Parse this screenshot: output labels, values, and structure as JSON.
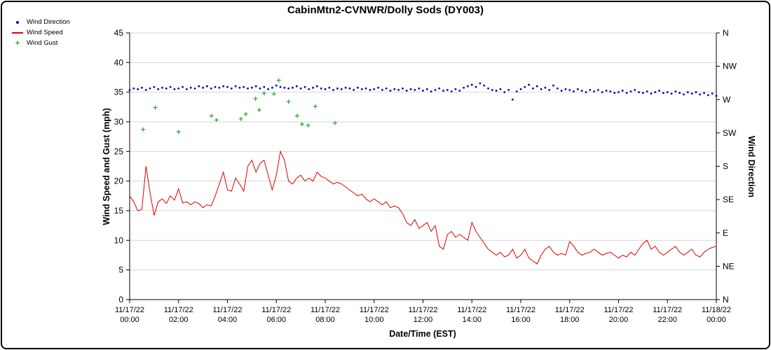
{
  "title": "CabinMtn2-CVNWR/Dolly Sods (DY003)",
  "chart_data": {
    "type": "line",
    "title": "CabinMtn2-CVNWR/Dolly Sods (DY003)",
    "xlabel": "Date/Time (EST)",
    "ylabel_left": "Wind Speed and Gust (mph)",
    "ylabel_right": "Wind Direction",
    "xlim_hours": [
      0,
      24
    ],
    "ylim_left": [
      0,
      45
    ],
    "ylim_right_deg": [
      0,
      360
    ],
    "grid": true,
    "legend_position": "top-left",
    "y_left_ticks": [
      0,
      5,
      10,
      15,
      20,
      25,
      30,
      35,
      40,
      45
    ],
    "y_right_ticks": [
      {
        "label": "N",
        "deg": 360
      },
      {
        "label": "NW",
        "deg": 315
      },
      {
        "label": "W",
        "deg": 270
      },
      {
        "label": "SW",
        "deg": 225
      },
      {
        "label": "S",
        "deg": 180
      },
      {
        "label": "SE",
        "deg": 135
      },
      {
        "label": "E",
        "deg": 90
      },
      {
        "label": "NE",
        "deg": 45
      },
      {
        "label": "N",
        "deg": 0
      }
    ],
    "x_ticks": [
      {
        "date": "11/17/22",
        "time": "00:00"
      },
      {
        "date": "11/17/22",
        "time": "02:00"
      },
      {
        "date": "11/17/22",
        "time": "04:00"
      },
      {
        "date": "11/17/22",
        "time": "06:00"
      },
      {
        "date": "11/17/22",
        "time": "08:00"
      },
      {
        "date": "11/17/22",
        "time": "10:00"
      },
      {
        "date": "11/17/22",
        "time": "12:00"
      },
      {
        "date": "11/17/22",
        "time": "14:00"
      },
      {
        "date": "11/17/22",
        "time": "16:00"
      },
      {
        "date": "11/17/22",
        "time": "18:00"
      },
      {
        "date": "11/17/22",
        "time": "20:00"
      },
      {
        "date": "11/17/22",
        "time": "22:00"
      },
      {
        "date": "11/18/22",
        "time": "00:00"
      }
    ],
    "legend": [
      {
        "label": "Wind Direction",
        "marker": "dot",
        "color": "#0000bb"
      },
      {
        "label": "Wind Speed",
        "marker": "line",
        "color": "#dd0000"
      },
      {
        "label": "Wind Gust",
        "marker": "plus",
        "color": "#22aa22"
      }
    ],
    "series": [
      {
        "name": "Wind Speed",
        "type": "line",
        "axis": "left",
        "units": "mph",
        "color": "#dd0000",
        "sample_minutes": 10,
        "values": [
          17.5,
          16.5,
          15.0,
          15.2,
          22.5,
          18.0,
          14.2,
          16.5,
          17.0,
          16.2,
          17.5,
          16.8,
          18.7,
          16.3,
          16.5,
          16.0,
          16.5,
          16.2,
          15.5,
          16.0,
          15.8,
          17.5,
          19.5,
          21.5,
          18.5,
          18.3,
          20.5,
          19.5,
          18.3,
          22.5,
          23.5,
          21.5,
          23.0,
          23.5,
          21.0,
          18.5,
          21.0,
          25.0,
          23.5,
          20.0,
          19.5,
          20.5,
          21.0,
          20.0,
          20.5,
          20.0,
          21.5,
          20.8,
          20.5,
          20.0,
          19.5,
          19.8,
          19.5,
          19.0,
          18.5,
          18.0,
          17.5,
          17.8,
          17.0,
          16.5,
          17.0,
          16.5,
          16.0,
          16.5,
          15.5,
          15.8,
          15.5,
          14.5,
          13.0,
          12.5,
          13.5,
          12.0,
          12.5,
          13.0,
          11.5,
          12.5,
          9.0,
          8.5,
          11.0,
          11.5,
          10.5,
          11.0,
          10.5,
          10.0,
          13.0,
          11.5,
          10.5,
          9.5,
          8.5,
          8.0,
          7.5,
          8.0,
          7.2,
          7.5,
          8.5,
          7.0,
          7.5,
          8.5,
          7.0,
          6.5,
          6.0,
          7.5,
          8.5,
          9.0,
          8.0,
          7.5,
          7.8,
          7.5,
          9.8,
          9.0,
          8.0,
          7.5,
          7.8,
          8.0,
          8.5,
          8.0,
          7.5,
          7.8,
          8.0,
          7.5,
          7.0,
          7.5,
          7.2,
          8.0,
          7.5,
          8.5,
          9.5,
          10.0,
          8.5,
          9.0,
          8.0,
          7.5,
          8.0,
          8.5,
          9.0,
          8.0,
          7.5,
          8.0,
          8.5,
          7.5,
          7.2,
          8.0,
          8.5,
          8.8,
          9.0
        ]
      },
      {
        "name": "Wind Direction",
        "type": "scatter",
        "axis": "right",
        "units": "deg",
        "color": "#0000bb",
        "sample_minutes": 10,
        "values_deg": [
          283,
          285,
          284,
          286,
          283,
          285,
          287,
          284,
          286,
          285,
          287,
          284,
          285,
          287,
          284,
          286,
          285,
          288,
          286,
          288,
          285,
          287,
          286,
          288,
          287,
          285,
          288,
          286,
          287,
          285,
          286,
          288,
          285,
          287,
          284,
          286,
          289,
          287,
          286,
          285,
          286,
          288,
          285,
          287,
          284,
          286,
          288,
          285,
          284,
          286,
          283,
          285,
          284,
          286,
          285,
          283,
          286,
          284,
          285,
          283,
          284,
          286,
          283,
          285,
          282,
          284,
          283,
          285,
          282,
          284,
          283,
          285,
          282,
          284,
          281,
          283,
          285,
          282,
          283,
          281,
          284,
          282,
          286,
          288,
          290,
          287,
          292,
          289,
          285,
          283,
          282,
          284,
          280,
          283,
          270,
          281,
          284,
          287,
          290,
          285,
          288,
          284,
          286,
          283,
          289,
          285,
          282,
          284,
          283,
          281,
          284,
          282,
          280,
          283,
          281,
          283,
          280,
          282,
          281,
          279,
          280,
          282,
          279,
          281,
          283,
          280,
          279,
          281,
          278,
          280,
          282,
          279,
          280,
          278,
          281,
          279,
          277,
          280,
          278,
          280,
          277,
          279,
          276,
          278,
          275
        ]
      },
      {
        "name": "Wind Gust",
        "type": "scatter-plus",
        "axis": "left",
        "units": "mph",
        "color": "#22aa22",
        "points": [
          [
            0.55,
            28.7
          ],
          [
            1.05,
            32.4
          ],
          [
            2.0,
            28.3
          ],
          [
            3.35,
            31.0
          ],
          [
            3.55,
            30.3
          ],
          [
            4.55,
            30.5
          ],
          [
            4.75,
            31.3
          ],
          [
            5.15,
            33.9
          ],
          [
            5.3,
            32.0
          ],
          [
            5.5,
            34.8
          ],
          [
            5.9,
            34.7
          ],
          [
            6.1,
            37.0
          ],
          [
            6.5,
            33.4
          ],
          [
            6.85,
            31.0
          ],
          [
            7.05,
            29.6
          ],
          [
            7.3,
            29.4
          ],
          [
            7.6,
            32.6
          ],
          [
            8.4,
            29.8
          ]
        ]
      }
    ]
  }
}
